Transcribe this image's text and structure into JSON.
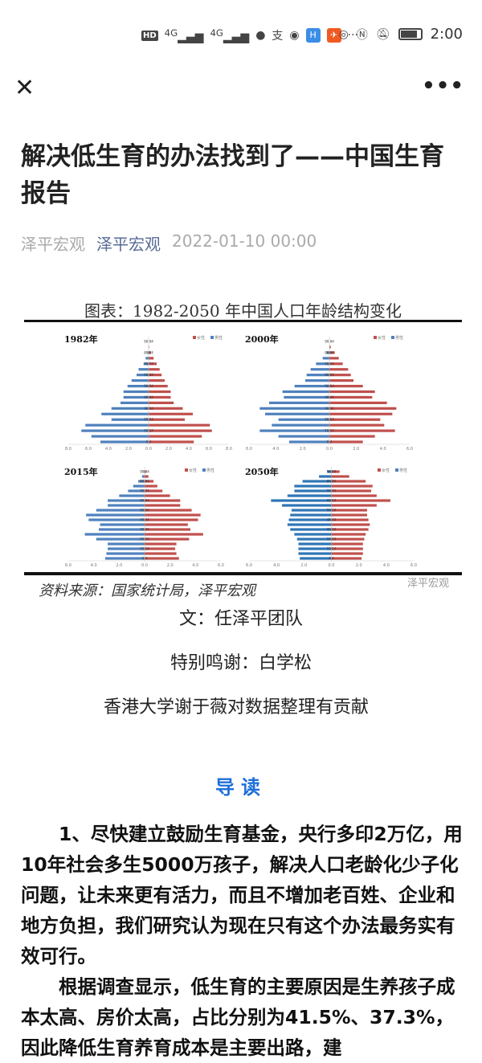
{
  "status_bar": {
    "time": "2:00",
    "network1": "4G",
    "network2": "4G",
    "icons": [
      "hd-icon",
      "signal-icon",
      "signal-icon",
      "wechat-icon",
      "alipay-icon",
      "browser-icon",
      "app-icon",
      "app-icon",
      "more-dots-icon",
      "eye-icon",
      "nfc-icon",
      "mute-icon",
      "battery-icon"
    ]
  },
  "header": {
    "close_icon": "close-icon",
    "more_icon": "more-icon"
  },
  "article": {
    "title": "解决低生育的办法找到了——中国生育报告",
    "author": "泽平宏观",
    "account": "泽平宏观",
    "date": "2022-01-10 00:00",
    "credit_text": "文：任泽平团队",
    "thanks": "特别鸣谢：白学松",
    "contribution": "香港大学谢于薇对数据整理有贡献",
    "section_heading": "导读",
    "para1": "1、尽快建立鼓励生育基金，央行多印2万亿，用10年社会多生5000万孩子，解决人口老龄化少子化问题，让未来更有活力，而且不增加老百姓、企业和地方负担，我们研究认为现在只有这个办法最务实有效可行。",
    "para2": "根据调查显示，低生育的主要原因是生养孩子成本太高、房价太高，占比分别为41.5%、37.3%，因此降低生育养育成本是主要出路，建"
  },
  "figure": {
    "caption": "图表：1982-2050 年中国人口年龄结构变化",
    "source": "资料来源：国家统计局，泽平宏观",
    "watermark": "泽平宏观"
  },
  "chart_data": [
    {
      "type": "bar",
      "title": "1982年",
      "legend": [
        "女性",
        "男性"
      ],
      "colors": {
        "女性": "#c0504d",
        "男性": "#4f81bd"
      },
      "xlim": [
        -8,
        8
      ],
      "xticks": [
        "8.0",
        "6.0",
        "4.0",
        "2.0",
        "0.0",
        "2.0",
        "4.0",
        "6.0",
        "8.0"
      ],
      "categories": [
        "0-4",
        "5-9",
        "10-14",
        "15-19",
        "20-24",
        "25-29",
        "30-34",
        "35-39",
        "40-44",
        "45-49",
        "50-54",
        "55-59",
        "60-64",
        "65-69",
        "70-74",
        "75-79",
        "80-84",
        "85-89",
        "90-94"
      ],
      "series": [
        {
          "name": "男性",
          "values": [
            4.8,
            5.7,
            6.7,
            6.3,
            3.7,
            4.7,
            3.7,
            2.8,
            2.5,
            2.5,
            2.1,
            1.7,
            1.2,
            1.0,
            0.5,
            0.3,
            0.1,
            0.0,
            0.0
          ]
        },
        {
          "name": "女性",
          "values": [
            4.5,
            5.3,
            6.3,
            6.1,
            3.6,
            4.4,
            3.4,
            2.5,
            2.2,
            2.2,
            1.9,
            1.6,
            1.3,
            1.1,
            0.8,
            0.5,
            0.2,
            0.05,
            0.0
          ]
        }
      ]
    },
    {
      "type": "bar",
      "title": "2000年",
      "legend": [
        "女性",
        "男性"
      ],
      "xlim": [
        -6,
        6
      ],
      "xticks": [
        "6.0",
        "4.0",
        "2.0",
        "0.0",
        "2.0",
        "4.0",
        "6.0"
      ],
      "categories": [
        "0-4",
        "5-9",
        "10-14",
        "15-19",
        "20-24",
        "25-29",
        "30-34",
        "35-39",
        "40-44",
        "45-49",
        "50-54",
        "55-59",
        "60-64",
        "65-69",
        "70-74",
        "75-79",
        "80-84",
        "85-89",
        "90-94"
      ],
      "series": [
        {
          "name": "男性",
          "values": [
            3.0,
            3.8,
            5.2,
            4.3,
            3.8,
            4.8,
            5.2,
            4.5,
            3.4,
            3.5,
            2.6,
            1.8,
            1.7,
            1.4,
            1.0,
            0.5,
            0.2,
            0.0,
            0.0
          ]
        },
        {
          "name": "女性",
          "values": [
            2.5,
            3.4,
            4.9,
            4.1,
            3.8,
            4.7,
            5.0,
            4.3,
            3.2,
            3.4,
            2.5,
            1.8,
            1.6,
            1.4,
            1.0,
            0.7,
            0.4,
            0.1,
            0.0
          ]
        }
      ]
    },
    {
      "type": "bar",
      "title": "2015年",
      "legend": [
        "女性",
        "男性"
      ],
      "xlim": [
        -6,
        6
      ],
      "xticks": [
        "6.0",
        "4.0",
        "2.0",
        "0.0",
        "2.0",
        "4.0",
        "6.0"
      ],
      "categories": [
        "0-4",
        "5-9",
        "10-14",
        "15-19",
        "20-24",
        "25-29",
        "30-34",
        "35-39",
        "40-44",
        "45-49",
        "50-54",
        "55-59",
        "60-64",
        "65-69",
        "70-74",
        "75-79",
        "80-84",
        "85-89",
        "90-94"
      ],
      "series": [
        {
          "name": "男性",
          "values": [
            3.1,
            3.0,
            2.9,
            2.9,
            3.8,
            4.7,
            3.6,
            3.5,
            4.4,
            4.6,
            3.8,
            2.9,
            2.9,
            2.0,
            1.3,
            0.9,
            0.5,
            0.2,
            0.05
          ]
        },
        {
          "name": "女性",
          "values": [
            2.7,
            2.5,
            2.4,
            2.5,
            3.5,
            4.6,
            3.6,
            3.4,
            4.2,
            4.4,
            3.7,
            2.8,
            2.8,
            2.0,
            1.4,
            1.0,
            0.7,
            0.3,
            0.1
          ]
        }
      ]
    },
    {
      "type": "bar",
      "title": "2050年",
      "legend": [
        "女性",
        "男性"
      ],
      "xlim": [
        -6,
        6
      ],
      "xticks": [
        "6.0",
        "4.0",
        "2.0",
        "0.0",
        "2.0",
        "4.0",
        "6.0"
      ],
      "categories": [
        "0-4",
        "5-9",
        "10-14",
        "15-19",
        "20-24",
        "25-29",
        "30-34",
        "35-39",
        "40-44",
        "45-49",
        "50-54",
        "55-59",
        "60-64",
        "65-69",
        "70-74",
        "75-79",
        "80-84",
        "85-89",
        "90-94"
      ],
      "series": [
        {
          "name": "男性",
          "values": [
            2.3,
            2.4,
            2.4,
            2.4,
            2.5,
            2.7,
            3.0,
            3.2,
            3.1,
            3.0,
            2.9,
            3.6,
            4.4,
            3.2,
            2.7,
            2.7,
            2.1,
            0.9,
            0.3
          ]
        },
        {
          "name": "女性",
          "values": [
            2.2,
            2.3,
            2.3,
            2.3,
            2.4,
            2.5,
            2.7,
            2.8,
            2.7,
            2.6,
            2.6,
            3.3,
            4.3,
            3.3,
            2.9,
            3.0,
            2.5,
            1.3,
            0.6
          ]
        }
      ]
    }
  ]
}
